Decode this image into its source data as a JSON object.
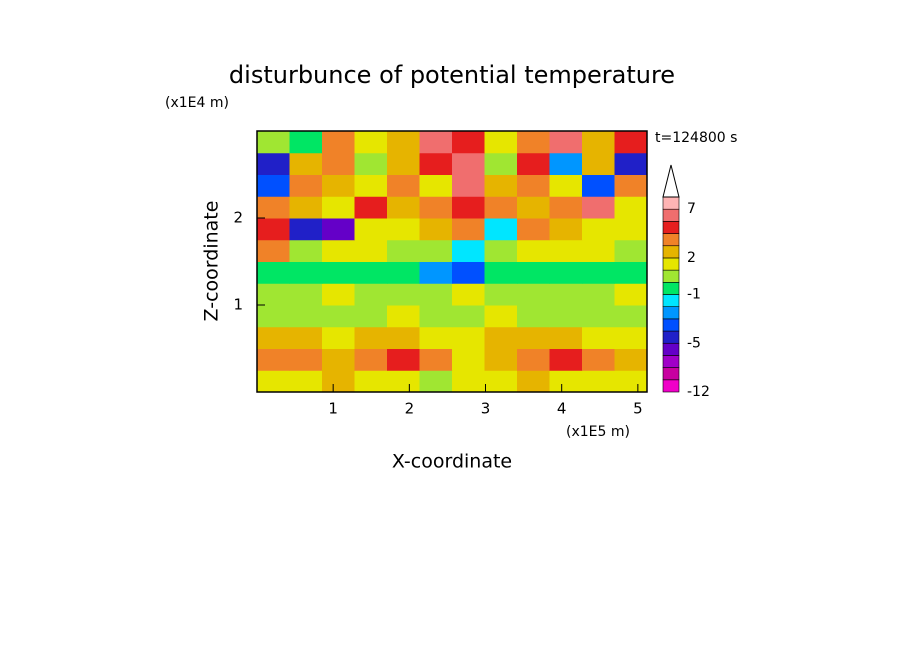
{
  "chart_data": {
    "type": "contour",
    "title": "disturbunce of potential temperature",
    "y_unit": "(x1E4 m)",
    "x_unit": "(x1E5 m)",
    "time_label": "t=124800 s",
    "xlabel": "X-coordinate",
    "ylabel": "Z-coordinate",
    "xlim": [
      0,
      5.12
    ],
    "ylim": [
      0,
      3
    ],
    "xticks": [
      1,
      2,
      3,
      4,
      5
    ],
    "yticks": [
      1,
      2
    ],
    "levels": [
      -12,
      -10,
      -8,
      -6,
      -5,
      -4,
      -3,
      -2,
      -1,
      0,
      1,
      2,
      3,
      4,
      5,
      7,
      9
    ],
    "colors": [
      "#f000c8",
      "#c800a0",
      "#a000c8",
      "#6400c8",
      "#2020c8",
      "#0050ff",
      "#0096ff",
      "#00e6ff",
      "#00e664",
      "#a0e632",
      "#e6e600",
      "#e6b400",
      "#f08228",
      "#e61e1e",
      "#f06e6e",
      "#ffb4b4"
    ],
    "colorbar_ticks": [
      -12,
      -5,
      -1,
      2,
      7
    ],
    "values": [
      [
        1,
        1,
        2,
        1,
        1,
        0,
        1,
        1,
        2,
        1,
        1,
        1
      ],
      [
        3,
        3,
        2,
        3,
        4,
        3,
        1,
        2,
        3,
        4,
        3,
        2
      ],
      [
        2,
        2,
        1,
        2,
        2,
        1,
        1,
        2,
        2,
        2,
        1,
        1
      ],
      [
        0,
        0,
        0,
        0,
        1,
        0,
        0,
        1,
        0,
        0,
        0,
        0
      ],
      [
        0,
        0,
        1,
        0,
        0,
        0,
        1,
        0,
        0,
        0,
        0,
        1
      ],
      [
        -1,
        -1,
        -1,
        -1,
        -1,
        -3,
        -4,
        -1,
        -1,
        -1,
        -1,
        -1
      ],
      [
        3,
        0,
        1,
        1,
        0,
        0,
        -2,
        0,
        1,
        1,
        1,
        0
      ],
      [
        4,
        -5,
        -6,
        1,
        1,
        2,
        3,
        -2,
        3,
        2,
        1,
        1
      ],
      [
        3,
        2,
        1,
        4,
        2,
        3,
        4,
        3,
        2,
        3,
        5,
        1
      ],
      [
        -4,
        3,
        2,
        1,
        3,
        1,
        5,
        2,
        3,
        1,
        -4,
        3
      ],
      [
        -5,
        2,
        3,
        0,
        2,
        4,
        6,
        0,
        4,
        -3,
        2,
        -5
      ],
      [
        0,
        -1,
        3,
        1,
        2,
        5,
        4,
        1,
        3,
        5,
        2,
        4
      ]
    ]
  }
}
